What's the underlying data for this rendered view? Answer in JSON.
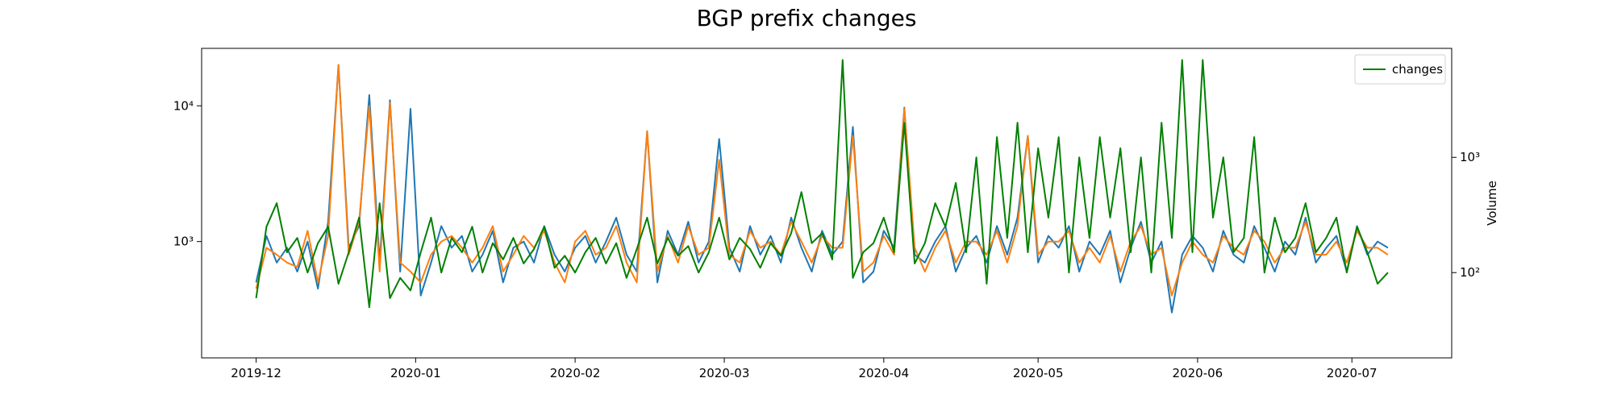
{
  "chart_data": {
    "type": "line",
    "title": "BGP prefix changes",
    "y2label": "Volume",
    "x": [
      0,
      2,
      4,
      6,
      8,
      10,
      12,
      14,
      16,
      18,
      20,
      22,
      24,
      26,
      28,
      30,
      32,
      34,
      36,
      38,
      40,
      42,
      44,
      46,
      48,
      50,
      52,
      54,
      56,
      58,
      60,
      62,
      64,
      66,
      68,
      70,
      72,
      74,
      76,
      78,
      80,
      82,
      84,
      86,
      88,
      90,
      92,
      94,
      96,
      98,
      100,
      102,
      104,
      106,
      108,
      110,
      112,
      114,
      116,
      118,
      120,
      122,
      124,
      126,
      128,
      130,
      132,
      134,
      136,
      138,
      140,
      142,
      144,
      146,
      148,
      150,
      152,
      154,
      156,
      158,
      160,
      162,
      164,
      166,
      168,
      170,
      172,
      174,
      176,
      178,
      180,
      182,
      184,
      186,
      188,
      190,
      192,
      194,
      196,
      198,
      200,
      202,
      204,
      206,
      208,
      210,
      212,
      214,
      216,
      218,
      220
    ],
    "xlim": [
      -10.6,
      232.4
    ],
    "xticks": [
      {
        "value": 0,
        "label": "2019-12"
      },
      {
        "value": 31,
        "label": "2020-01"
      },
      {
        "value": 62,
        "label": "2020-02"
      },
      {
        "value": 91,
        "label": "2020-03"
      },
      {
        "value": 122,
        "label": "2020-04"
      },
      {
        "value": 152,
        "label": "2020-05"
      },
      {
        "value": 183,
        "label": "2020-06"
      },
      {
        "value": 213,
        "label": "2020-07"
      }
    ],
    "ylim": [
      139,
      26500
    ],
    "yscale": "log",
    "yticks": [
      {
        "value": 1000,
        "label": "10³"
      },
      {
        "value": 10000,
        "label": "10⁴"
      }
    ],
    "y2lim": [
      18.2,
      8830
    ],
    "y2scale": "log",
    "y2ticks": [
      {
        "value": 100,
        "label": "10²"
      },
      {
        "value": 1000,
        "label": "10³"
      }
    ],
    "legend": "upper right",
    "series": [
      {
        "color": "#1f77b4",
        "values": [
          500,
          1100,
          700,
          900,
          600,
          1000,
          450,
          1400,
          20000,
          900,
          1300,
          12000,
          700,
          11000,
          600,
          9500,
          400,
          700,
          1300,
          900,
          1100,
          600,
          800,
          1200,
          500,
          900,
          1000,
          700,
          1300,
          800,
          600,
          900,
          1100,
          700,
          1000,
          1500,
          800,
          600,
          6500,
          500,
          1200,
          800,
          1400,
          700,
          1000,
          5700,
          900,
          600,
          1300,
          800,
          1100,
          700,
          1500,
          900,
          600,
          1200,
          800,
          1000,
          7000,
          500,
          600,
          1200,
          900,
          9700,
          800,
          700,
          1000,
          1300,
          600,
          900,
          1100,
          700,
          1300,
          800,
          1500,
          6000,
          700,
          1100,
          900,
          1300,
          600,
          1000,
          800,
          1200,
          500,
          900,
          1400,
          700,
          1000,
          300,
          800,
          1100,
          900,
          600,
          1200,
          800,
          700,
          1300,
          900,
          600,
          1000,
          800,
          1500,
          700,
          900,
          1100,
          600,
          1300,
          800,
          1000,
          900
        ]
      },
      {
        "color": "#ff7f0e",
        "values": [
          450,
          900,
          800,
          700,
          650,
          1200,
          500,
          1100,
          20000,
          800,
          1400,
          10000,
          600,
          10500,
          700,
          600,
          500,
          800,
          1000,
          1100,
          900,
          700,
          900,
          1300,
          600,
          800,
          1100,
          900,
          1200,
          700,
          500,
          1000,
          1200,
          800,
          900,
          1300,
          700,
          500,
          6500,
          600,
          1100,
          700,
          1300,
          800,
          900,
          4000,
          800,
          700,
          1200,
          900,
          1000,
          800,
          1400,
          1000,
          700,
          1100,
          900,
          900,
          6000,
          600,
          700,
          1100,
          800,
          9500,
          900,
          600,
          900,
          1200,
          700,
          1000,
          1000,
          800,
          1200,
          700,
          1300,
          6000,
          800,
          1000,
          1000,
          1200,
          700,
          900,
          700,
          1100,
          600,
          1000,
          1300,
          800,
          900,
          400,
          700,
          1000,
          800,
          700,
          1100,
          900,
          800,
          1200,
          1000,
          700,
          900,
          900,
          1400,
          800,
          800,
          1000,
          700,
          1200,
          900,
          900,
          800
        ]
      },
      {
        "name": "changes",
        "color": "#008000",
        "axis": "y2",
        "values": [
          60,
          250,
          400,
          150,
          200,
          100,
          180,
          250,
          80,
          150,
          300,
          50,
          400,
          60,
          90,
          70,
          150,
          300,
          100,
          200,
          150,
          250,
          100,
          180,
          130,
          200,
          120,
          160,
          250,
          110,
          140,
          100,
          150,
          200,
          120,
          180,
          90,
          160,
          300,
          120,
          200,
          140,
          170,
          100,
          150,
          300,
          130,
          200,
          160,
          110,
          180,
          140,
          220,
          500,
          180,
          220,
          130,
          7000,
          90,
          150,
          180,
          300,
          150,
          2000,
          120,
          180,
          400,
          250,
          600,
          150,
          1000,
          80,
          1500,
          200,
          2000,
          150,
          1200,
          300,
          1500,
          100,
          1000,
          200,
          1500,
          300,
          1200,
          150,
          1000,
          100,
          2000,
          200,
          7000,
          150,
          7000,
          300,
          1000,
          150,
          200,
          1500,
          100,
          300,
          150,
          200,
          400,
          150,
          200,
          300,
          100,
          250,
          150,
          80,
          100
        ]
      }
    ]
  }
}
